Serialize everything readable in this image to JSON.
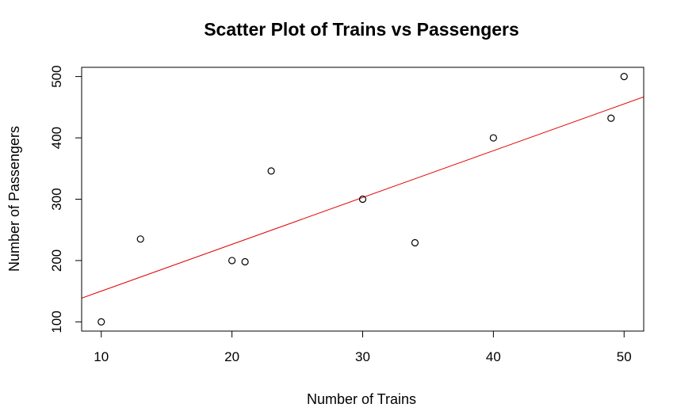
{
  "chart_data": {
    "type": "scatter",
    "title": "Scatter Plot of Trains vs Passengers",
    "xlabel": "Number of Trains",
    "ylabel": "Number of Passengers",
    "xlim": [
      8.5,
      51.5
    ],
    "ylim": [
      85,
      515
    ],
    "xticks": [
      10,
      20,
      30,
      40,
      50
    ],
    "yticks": [
      100,
      200,
      300,
      400,
      500
    ],
    "points": [
      {
        "x": 10,
        "y": 100
      },
      {
        "x": 13,
        "y": 235
      },
      {
        "x": 20,
        "y": 200
      },
      {
        "x": 21,
        "y": 198
      },
      {
        "x": 23,
        "y": 346
      },
      {
        "x": 30,
        "y": 300
      },
      {
        "x": 34,
        "y": 229
      },
      {
        "x": 40,
        "y": 400
      },
      {
        "x": 49,
        "y": 432
      },
      {
        "x": 50,
        "y": 500
      }
    ],
    "fit_line": {
      "intercept": 73.87,
      "slope": 7.63
    },
    "colors": {
      "points": "#000000",
      "fit_line": "#e00000",
      "frame": "#000000"
    },
    "grid": false
  }
}
